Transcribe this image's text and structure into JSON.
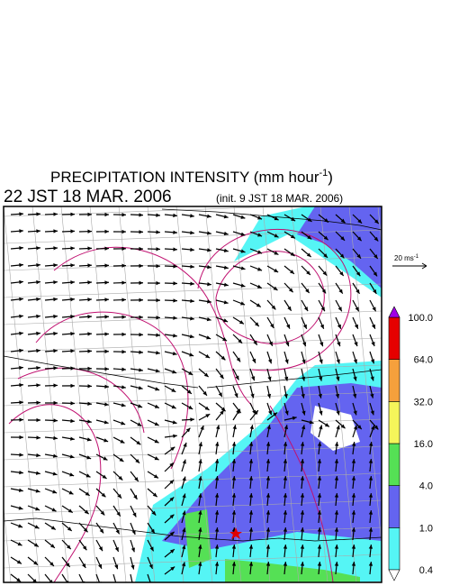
{
  "title": {
    "text": "PRECIPITATION INTENSITY (mm hour",
    "superscript": "-1",
    "close": ")"
  },
  "valid_time": "22 JST 18 MAR. 2006",
  "init_time": "(init. 9 JST 18 MAR. 2006)",
  "vector_scale": {
    "text": "20 ms",
    "superscript": "-1"
  },
  "colorbar": {
    "labels": [
      "0.4",
      "1.0",
      "4.0",
      "16.0",
      "32.0",
      "64.0",
      "100.0"
    ],
    "colors": [
      "#55f5f5",
      "#6464f0",
      "#55e055",
      "#f5f55a",
      "#f5a03c",
      "#e60000"
    ],
    "over_color": "#a000e6",
    "under_color": "#ffffff"
  }
}
